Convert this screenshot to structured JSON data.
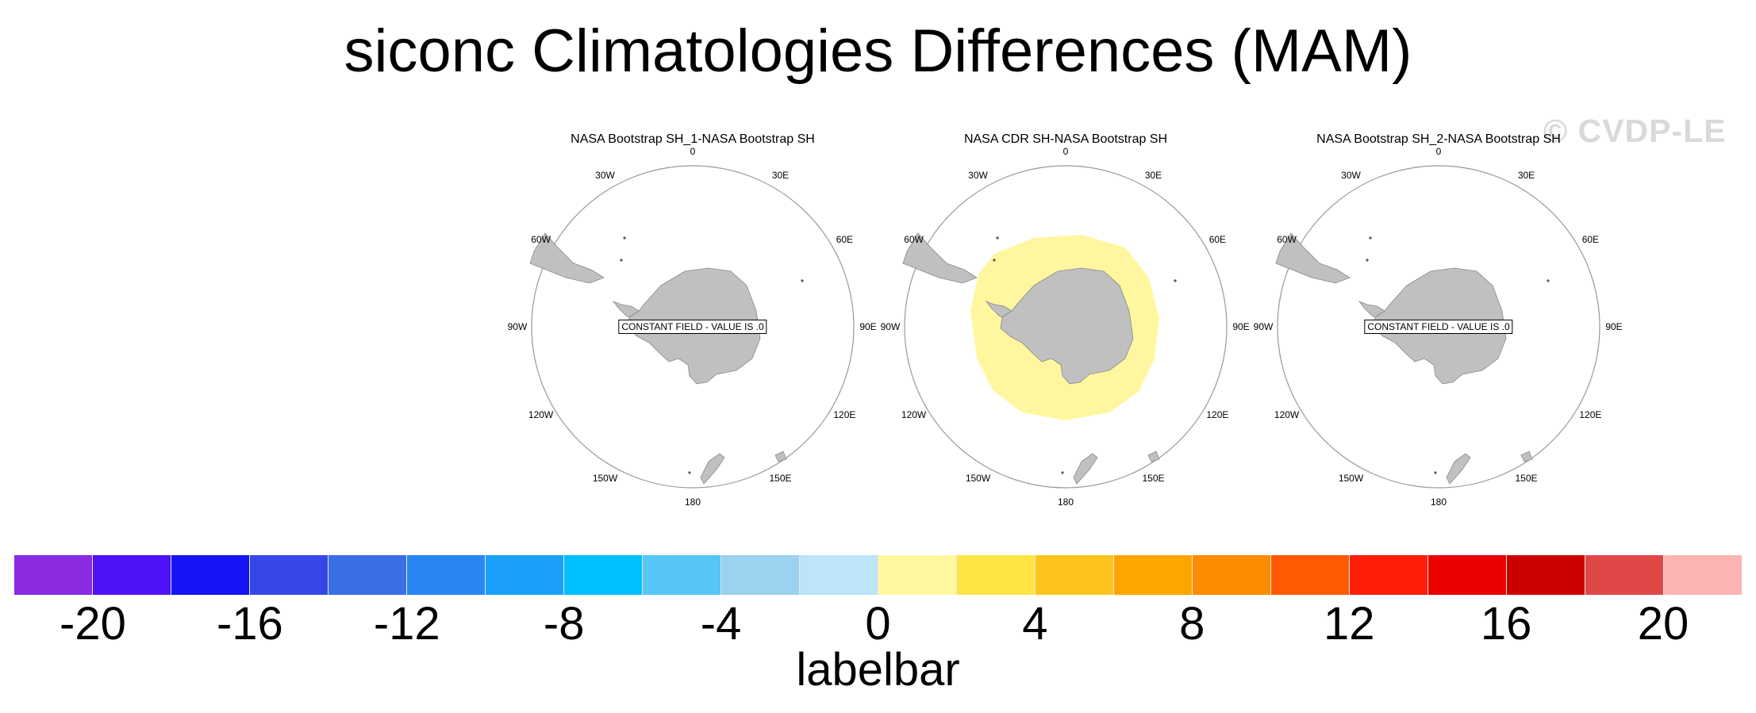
{
  "title": "siconc Climatologies Differences (MAM)",
  "watermark": "© CVDP-LE",
  "colors": {
    "land": "#c0c0c0",
    "land_outline": "#888888",
    "circle": "#9a9a9a",
    "positive_small": "#fff7a0"
  },
  "longitude_labels": {
    "top": "0",
    "top_right": "30E",
    "right_upper": "60E",
    "right": "90E",
    "right_lower": "120E",
    "bottom_right": "150E",
    "bottom": "180",
    "bottom_left": "150W",
    "left_lower": "120W",
    "left": "90W",
    "left_upper": "60W",
    "top_left": "30W"
  },
  "panels": [
    {
      "title": "NASA Bootstrap SH_1-NASA Bootstrap SH",
      "constant_field": "CONSTANT FIELD - VALUE IS .0",
      "shaded_value": 0
    },
    {
      "title": "NASA CDR SH-NASA Bootstrap SH",
      "constant_field": "",
      "shaded_value": 2
    },
    {
      "title": "NASA Bootstrap SH_2-NASA Bootstrap SH",
      "constant_field": "CONSTANT FIELD - VALUE IS .0",
      "shaded_value": 0
    }
  ],
  "labelbar": {
    "label": "labelbar",
    "colors": [
      "#8a2be2",
      "#4d12f5",
      "#1414f5",
      "#3547e6",
      "#3a6ee6",
      "#2887f5",
      "#19a0fa",
      "#00bfff",
      "#55c6f5",
      "#9ad2ef",
      "#bde4f7",
      "#fff7a0",
      "#ffe445",
      "#ffc31e",
      "#ffa500",
      "#ff8c00",
      "#ff5a00",
      "#ff1e0a",
      "#eb0000",
      "#cd0000",
      "#e04848",
      "#ffb4b4"
    ],
    "tick_labels": [
      "-20",
      "-16",
      "-12",
      "-8",
      "-4",
      "0",
      "4",
      "8",
      "12",
      "16",
      "20"
    ]
  }
}
